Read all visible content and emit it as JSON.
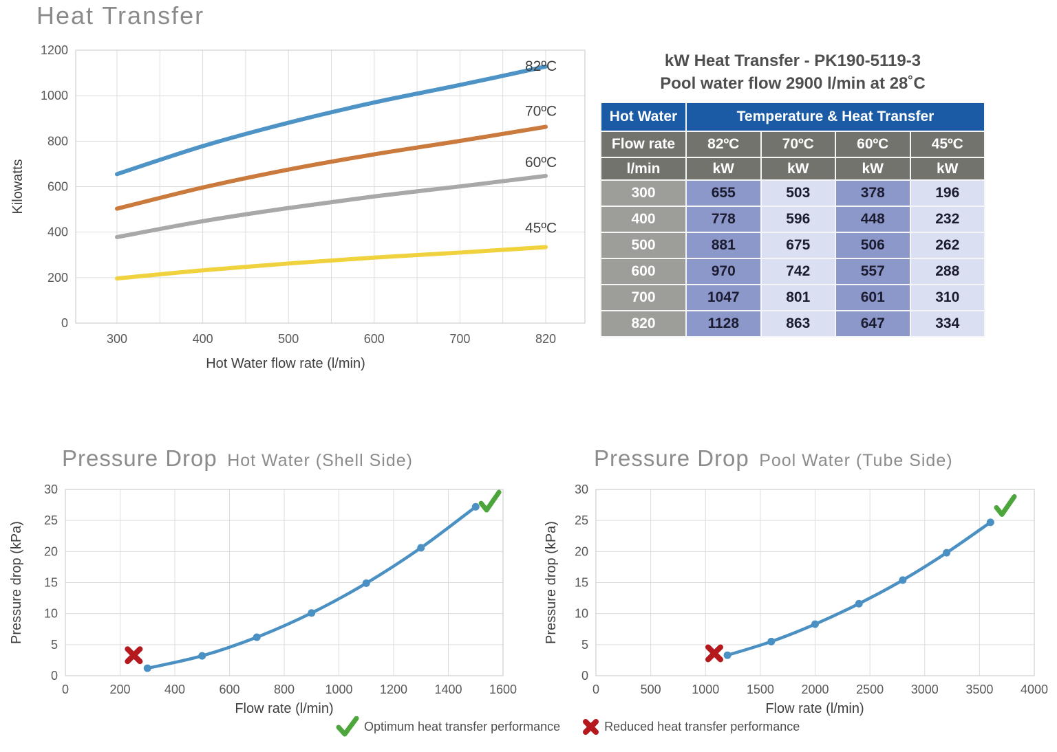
{
  "legend": {
    "optimum": "Optimum heat transfer performance",
    "reduced": "Reduced heat transfer performance"
  },
  "colors": {
    "grid": "#dcdcdc",
    "plot_border": "#cfcfcf",
    "tick_text": "#595959",
    "axis_text": "#3e3e3e",
    "title_text": "#8a8a8a",
    "table_header_blue": "#1b5aa5",
    "table_header_gray": "#73736d",
    "table_row_label_gray": "#9d9d9a",
    "table_cell_dark": "#8c97ca",
    "table_cell_light": "#dbdff2",
    "check": "#4ca63c",
    "cross": "#b4191e",
    "curve_blue": "#4b90c3"
  },
  "chart_data": [
    {
      "id": "heat",
      "type": "line",
      "title": "Heat Transfer",
      "xlabel": "Hot Water flow rate (l/min)",
      "ylabel": "Kilowatts",
      "categories": [
        "300",
        "400",
        "500",
        "600",
        "700",
        "820"
      ],
      "ylim": [
        0,
        1200
      ],
      "yticks": [
        0,
        200,
        400,
        600,
        800,
        1000,
        1200
      ],
      "grid": true,
      "legend_position": "end-of-line-labels",
      "series": [
        {
          "name": "82ºC",
          "color": "#4e93c5",
          "values": [
            655,
            778,
            881,
            970,
            1047,
            1128
          ]
        },
        {
          "name": "70ºC",
          "color": "#cb7a3e",
          "values": [
            503,
            596,
            675,
            742,
            801,
            863
          ]
        },
        {
          "name": "60ºC",
          "color": "#a8a8a8",
          "values": [
            378,
            448,
            506,
            557,
            601,
            647
          ]
        },
        {
          "name": "45ºC",
          "color": "#f0d23e",
          "values": [
            196,
            232,
            262,
            288,
            310,
            334
          ]
        }
      ]
    },
    {
      "id": "kw_table",
      "type": "table",
      "title_line1": "kW Heat Transfer - PK190-5119-3",
      "title_line2": "Pool water flow 2900 l/min at 28˚C",
      "header_col": "Hot Water",
      "header_span": "Temperature & Heat Transfer",
      "subheader": [
        "Flow rate",
        "82ºC",
        "70ºC",
        "60ºC",
        "45ºC"
      ],
      "units": [
        "l/min",
        "kW",
        "kW",
        "kW",
        "kW"
      ],
      "rows": [
        [
          300,
          655,
          503,
          378,
          196
        ],
        [
          400,
          778,
          596,
          448,
          232
        ],
        [
          500,
          881,
          675,
          506,
          262
        ],
        [
          600,
          970,
          742,
          557,
          288
        ],
        [
          700,
          1047,
          801,
          601,
          310
        ],
        [
          820,
          1128,
          863,
          647,
          334
        ]
      ]
    },
    {
      "id": "pd_left",
      "type": "scatter-line",
      "title_main": "Pressure Drop",
      "title_sub": "Hot Water (Shell Side)",
      "xlabel": "Flow rate (l/min)",
      "ylabel": "Pressure drop (kPa)",
      "xlim": [
        0,
        1600
      ],
      "ylim": [
        0,
        30
      ],
      "xticks": [
        0,
        200,
        400,
        600,
        800,
        1000,
        1200,
        1400,
        1600
      ],
      "yticks": [
        0,
        5,
        10,
        15,
        20,
        25,
        30
      ],
      "grid": true,
      "series": [
        {
          "name": "pressure-drop",
          "color": "#4b90c3",
          "x": [
            300,
            500,
            700,
            900,
            1100,
            1300,
            1500
          ],
          "values": [
            1.2,
            3.2,
            6.2,
            10.1,
            14.9,
            20.6,
            27.2
          ]
        }
      ],
      "annotations": [
        {
          "type": "cross",
          "x": 250,
          "y": 3.3
        },
        {
          "type": "check",
          "x": 1550,
          "y": 28
        }
      ]
    },
    {
      "id": "pd_right",
      "type": "scatter-line",
      "title_main": "Pressure Drop",
      "title_sub": "Pool Water (Tube Side)",
      "xlabel": "Flow rate (l/min)",
      "ylabel": "Pressure drop (kPa)",
      "xlim": [
        0,
        4000
      ],
      "ylim": [
        0,
        30
      ],
      "xticks": [
        0,
        500,
        1000,
        1500,
        2000,
        2500,
        3000,
        3500,
        4000
      ],
      "yticks": [
        0,
        5,
        10,
        15,
        20,
        25,
        30
      ],
      "grid": true,
      "series": [
        {
          "name": "pressure-drop",
          "color": "#4b90c3",
          "x": [
            1200,
            1600,
            2000,
            2400,
            2800,
            3200,
            3600
          ],
          "values": [
            3.3,
            5.5,
            8.3,
            11.6,
            15.4,
            19.8,
            24.7
          ]
        }
      ],
      "annotations": [
        {
          "type": "cross",
          "x": 1080,
          "y": 3.6
        },
        {
          "type": "check",
          "x": 3730,
          "y": 27.3
        }
      ]
    }
  ]
}
